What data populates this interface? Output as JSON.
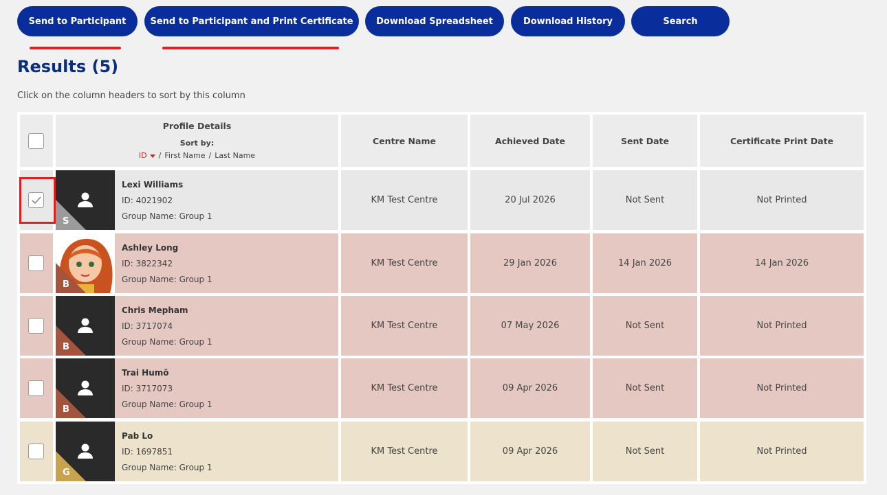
{
  "buttons": [
    "Send to Participant",
    "Send to Participant and Print Certificate",
    "Download Spreadsheet",
    "Download History",
    "Search"
  ],
  "title": "Results (5)",
  "hint": "Click on the column headers to sort by this column",
  "table": {
    "profile_header": "Profile Details",
    "sort_by": "Sort by:",
    "sort_options": [
      "ID",
      "First Name",
      "Last Name"
    ],
    "sort_separator": "/",
    "columns": [
      "Centre Name",
      "Achieved Date",
      "Sent Date",
      "Certificate Print Date"
    ],
    "rows": [
      {
        "name": "Lexi Williams",
        "id": "ID: 4021902",
        "group": "Group Name: Group 1",
        "badge": "S",
        "badge_color": "#9b9b9b",
        "photo": false,
        "checked": true,
        "row_color": "#e8e8e8",
        "cells": [
          "KM Test Centre",
          "20 Jul 2026",
          "Not Sent",
          "Not Printed"
        ]
      },
      {
        "name": "Ashley Long",
        "id": "ID: 3822342",
        "group": "Group Name: Group 1",
        "badge": "B",
        "badge_color": "#a4533c",
        "photo": true,
        "checked": false,
        "row_color": "#e6c8c2",
        "cells": [
          "KM Test Centre",
          "29 Jan 2026",
          "14 Jan 2026",
          "14 Jan 2026"
        ]
      },
      {
        "name": "Chris Mepham",
        "id": "ID: 3717074",
        "group": "Group Name: Group 1",
        "badge": "B",
        "badge_color": "#a4533c",
        "photo": false,
        "checked": false,
        "row_color": "#e6c8c2",
        "cells": [
          "KM Test Centre",
          "07 May 2026",
          "Not Sent",
          "Not Printed"
        ]
      },
      {
        "name": "Trai Humö",
        "id": "ID: 3717073",
        "group": "Group Name: Group 1",
        "badge": "B",
        "badge_color": "#a4533c",
        "photo": false,
        "checked": false,
        "row_color": "#e6c8c2",
        "cells": [
          "KM Test Centre",
          "09 Apr 2026",
          "Not Sent",
          "Not Printed"
        ]
      },
      {
        "name": "Pab Lo",
        "id": "ID: 1697851",
        "group": "Group Name: Group 1",
        "badge": "G",
        "badge_color": "#c9a24e",
        "photo": false,
        "checked": false,
        "row_color": "#ede2cb",
        "cells": [
          "KM Test Centre",
          "09 Apr 2026",
          "Not Sent",
          "Not Printed"
        ]
      }
    ]
  }
}
